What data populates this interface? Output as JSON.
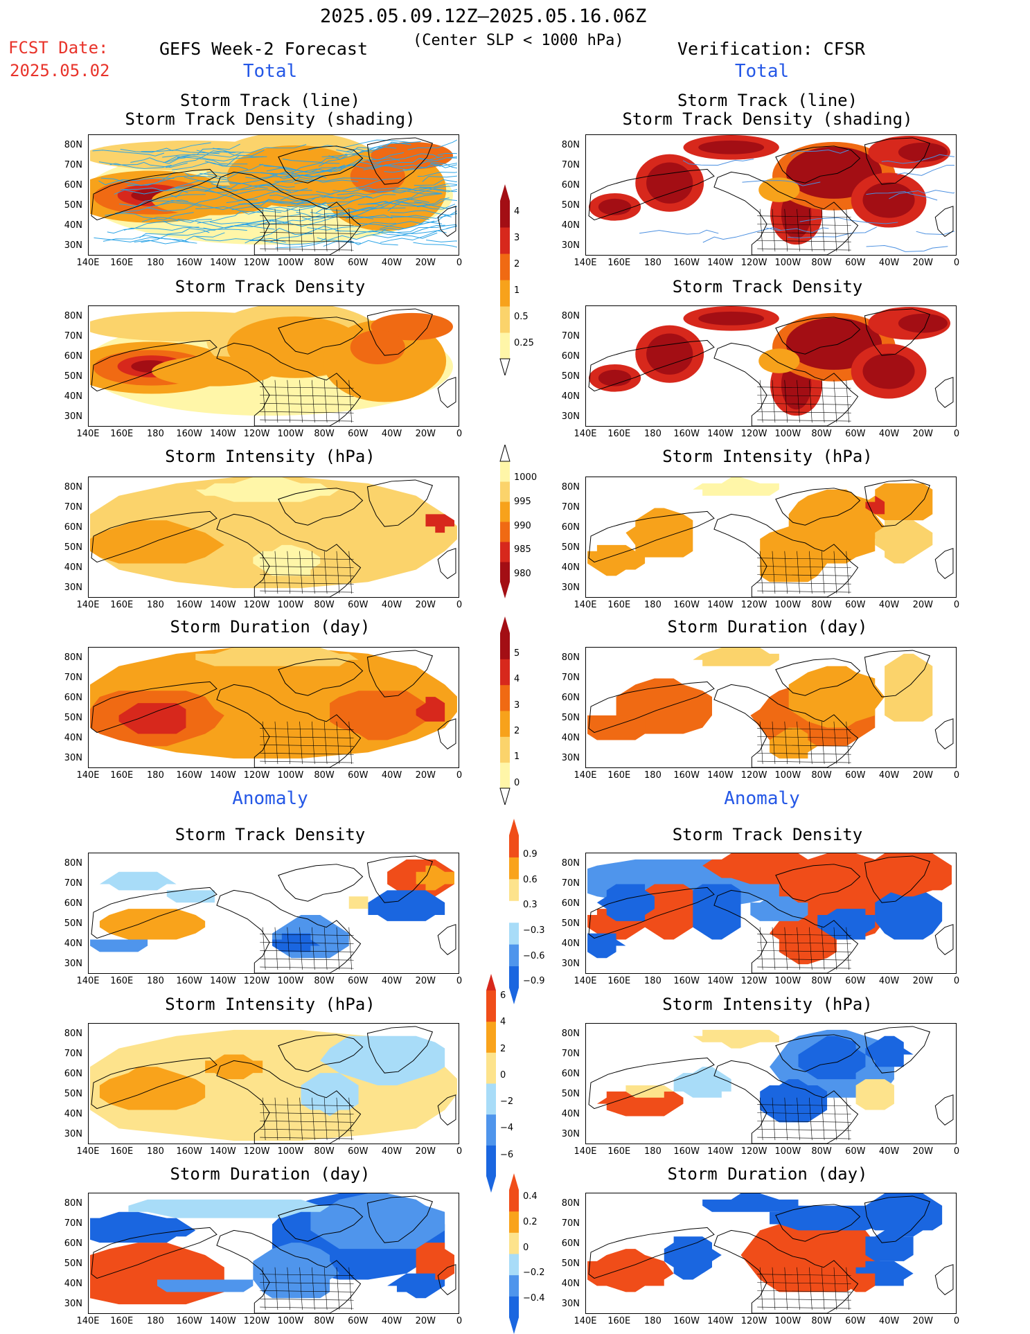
{
  "header": {
    "period": "2025.05.09.12Z–2025.05.16.06Z",
    "criterion": "(Center SLP < 1000 hPa)",
    "fcst_label": "FCST Date:",
    "fcst_date": "2025.05.02",
    "left_title": "GEFS Week-2 Forecast",
    "right_title": "Verification: CFSR"
  },
  "sections": {
    "total": "Total",
    "anomaly": "Anomaly"
  },
  "axes": {
    "lat_labels": [
      "80N",
      "70N",
      "60N",
      "50N",
      "40N",
      "30N"
    ],
    "lon_labels": [
      "140E",
      "160E",
      "180",
      "160W",
      "140W",
      "120W",
      "100W",
      "80W",
      "60W",
      "40W",
      "20W",
      "0"
    ]
  },
  "panels": {
    "track_line": [
      "Storm Track (line)",
      "Storm Track Density (shading)"
    ],
    "track_density": "Storm Track Density",
    "intensity": "Storm Intensity (hPa)",
    "duration": "Storm Duration (day)"
  },
  "colorbars": {
    "density": [
      "4",
      "3",
      "2",
      "1",
      "0.5",
      "0.25"
    ],
    "intensity": [
      "1000",
      "995",
      "990",
      "985",
      "980"
    ],
    "duration": [
      "5",
      "4",
      "3",
      "2",
      "1",
      "0"
    ],
    "density_anom": [
      "0.9",
      "0.6",
      "0.3",
      "−0.3",
      "−0.6",
      "−0.9"
    ],
    "intensity_anom": [
      "6",
      "4",
      "2",
      "0",
      "−2",
      "−4",
      "−6"
    ],
    "duration_anom": [
      "0.4",
      "0.2",
      "0",
      "−0.2",
      "−0.4"
    ]
  },
  "colors": {
    "total_scale": [
      "#fff6a8",
      "#fbd36b",
      "#f7a21b",
      "#f06a13",
      "#d7281c",
      "#a30e14"
    ],
    "anom_scale": [
      "#1a66e0",
      "#4f95ec",
      "#a8dcf8",
      "#ffffff",
      "#fde38c",
      "#f9a31b",
      "#f04d19"
    ],
    "track_line": "#2aa3e6"
  }
}
